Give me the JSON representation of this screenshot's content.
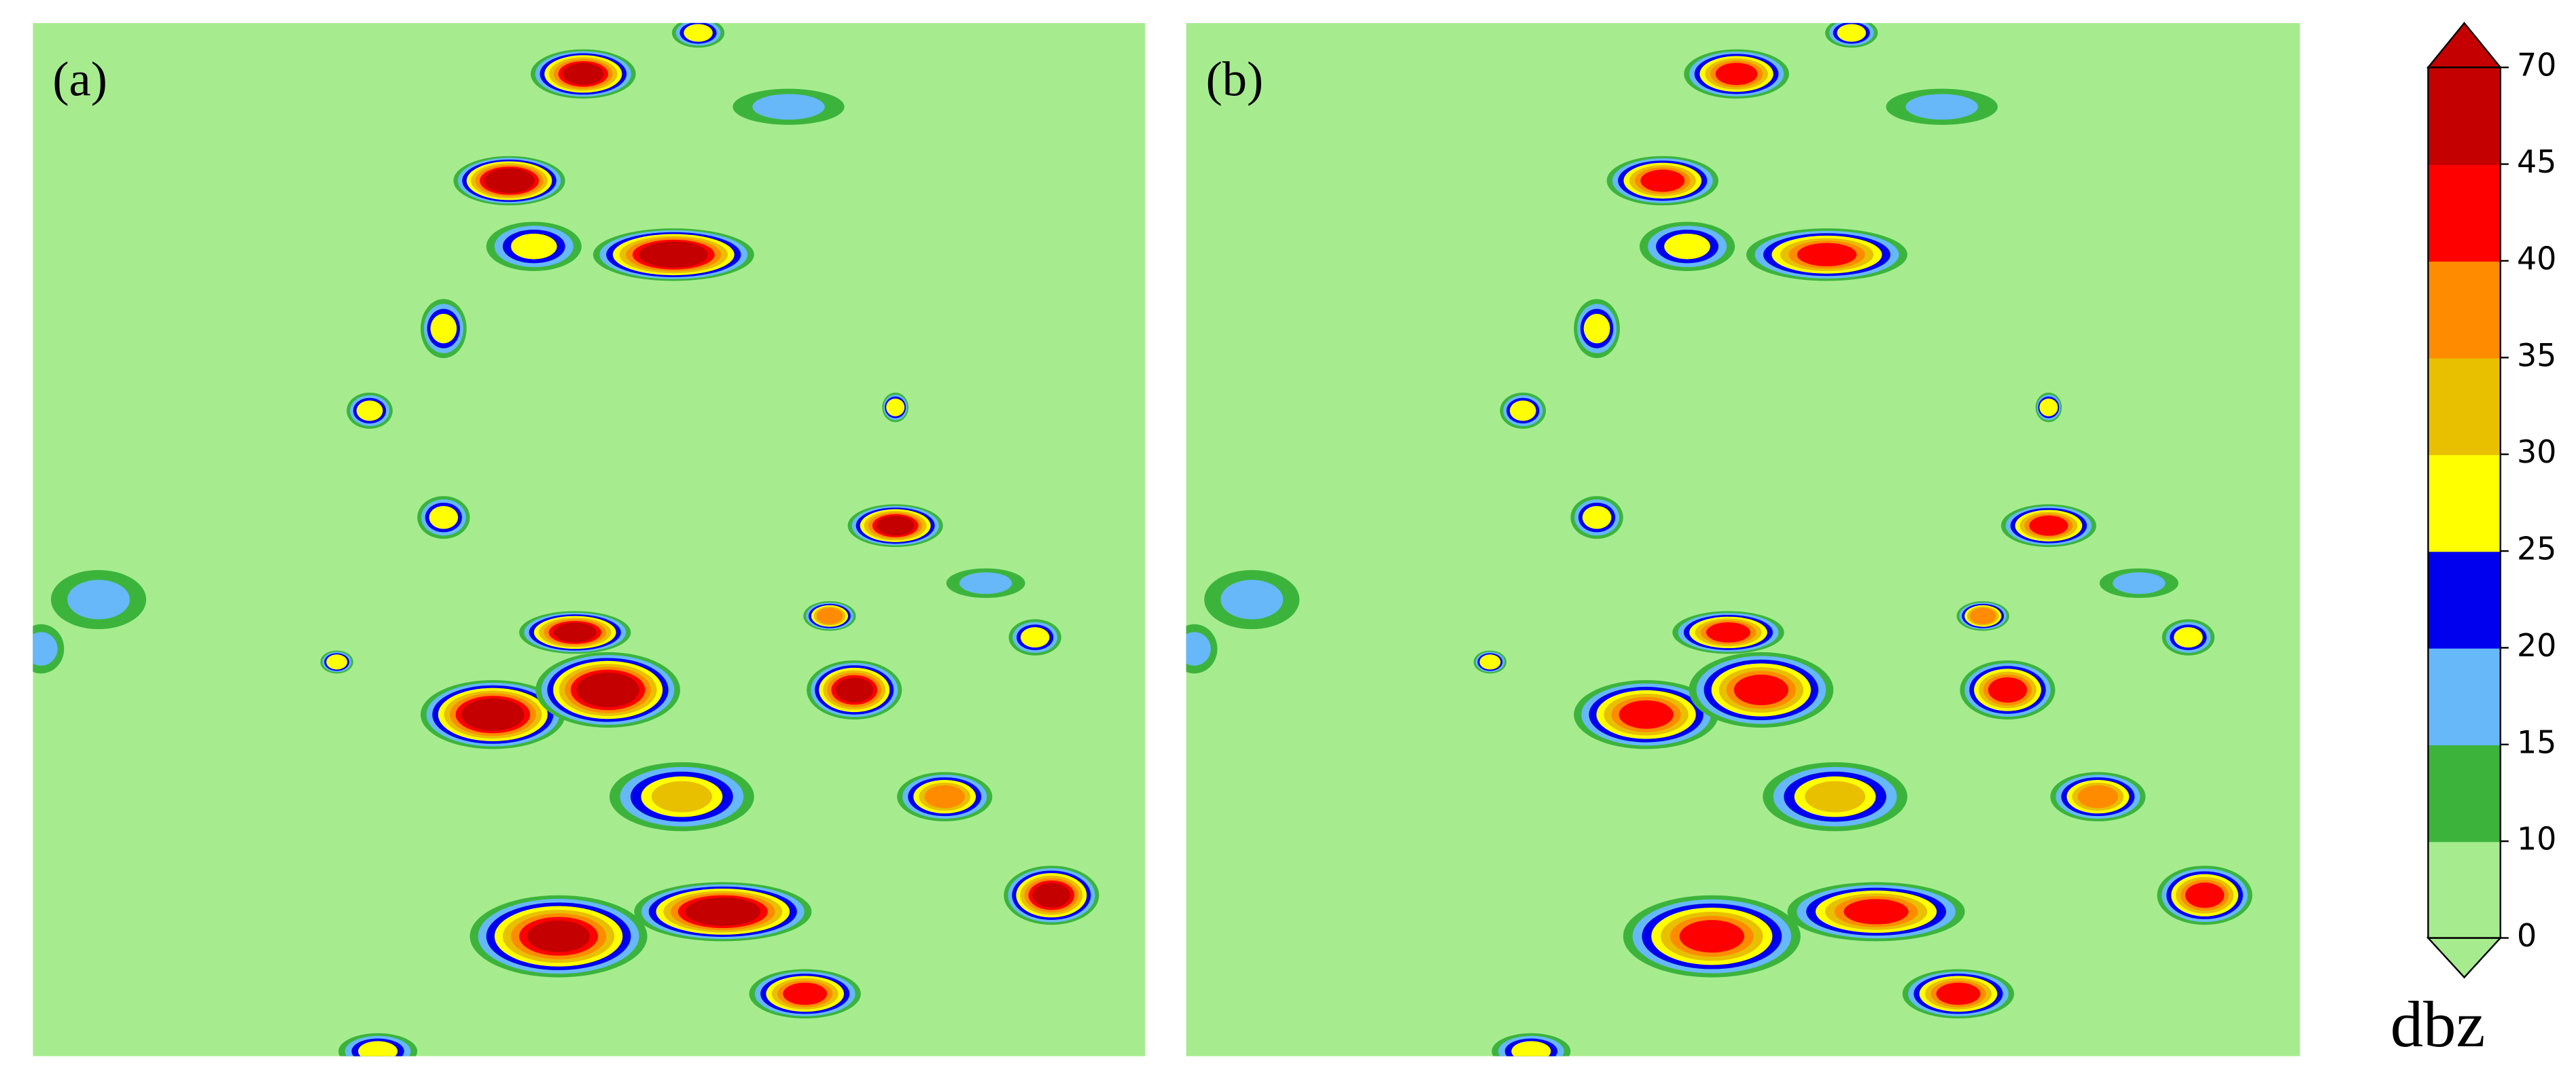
{
  "chart_data": {
    "type": "colormesh",
    "panels": [
      {
        "label": "(a)"
      },
      {
        "label": "(b)"
      }
    ],
    "colorbar": {
      "label": "dbz",
      "extend": "both",
      "levels": [
        0,
        10,
        15,
        20,
        25,
        30,
        35,
        40,
        45,
        70
      ],
      "colors": [
        "#a6ec8e",
        "#3cb43c",
        "#66b8f8",
        "#0000ee",
        "#ffff00",
        "#e8c000",
        "#ff8c00",
        "#ff0000",
        "#c40000"
      ]
    }
  }
}
